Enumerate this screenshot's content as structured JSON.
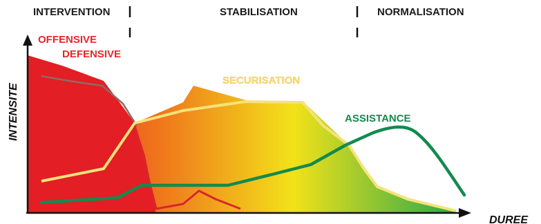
{
  "phases": {
    "intervention": "INTERVENTION",
    "stabilisation": "STABILISATION",
    "normalisation": "NORMALISATION"
  },
  "axes": {
    "y_label": "INTENSITE",
    "x_label": "DUREE"
  },
  "curves": {
    "offensive": {
      "label": "OFFENSIVE",
      "color": "#e8252a"
    },
    "defensive": {
      "label": "DEFENSIVE",
      "color": "#e8252a"
    },
    "securisation": {
      "label": "SECURISATION",
      "color": "#f5e27a"
    },
    "assistance": {
      "label": "ASSISTANCE",
      "color": "#138a4e"
    }
  },
  "colors": {
    "gradient_red": "#e31e24",
    "gradient_orange": "#f07a1c",
    "gradient_yellow": "#f2e21a",
    "gradient_green": "#2ca84a",
    "phase_divider": "#111111",
    "axis": "#111111"
  }
}
